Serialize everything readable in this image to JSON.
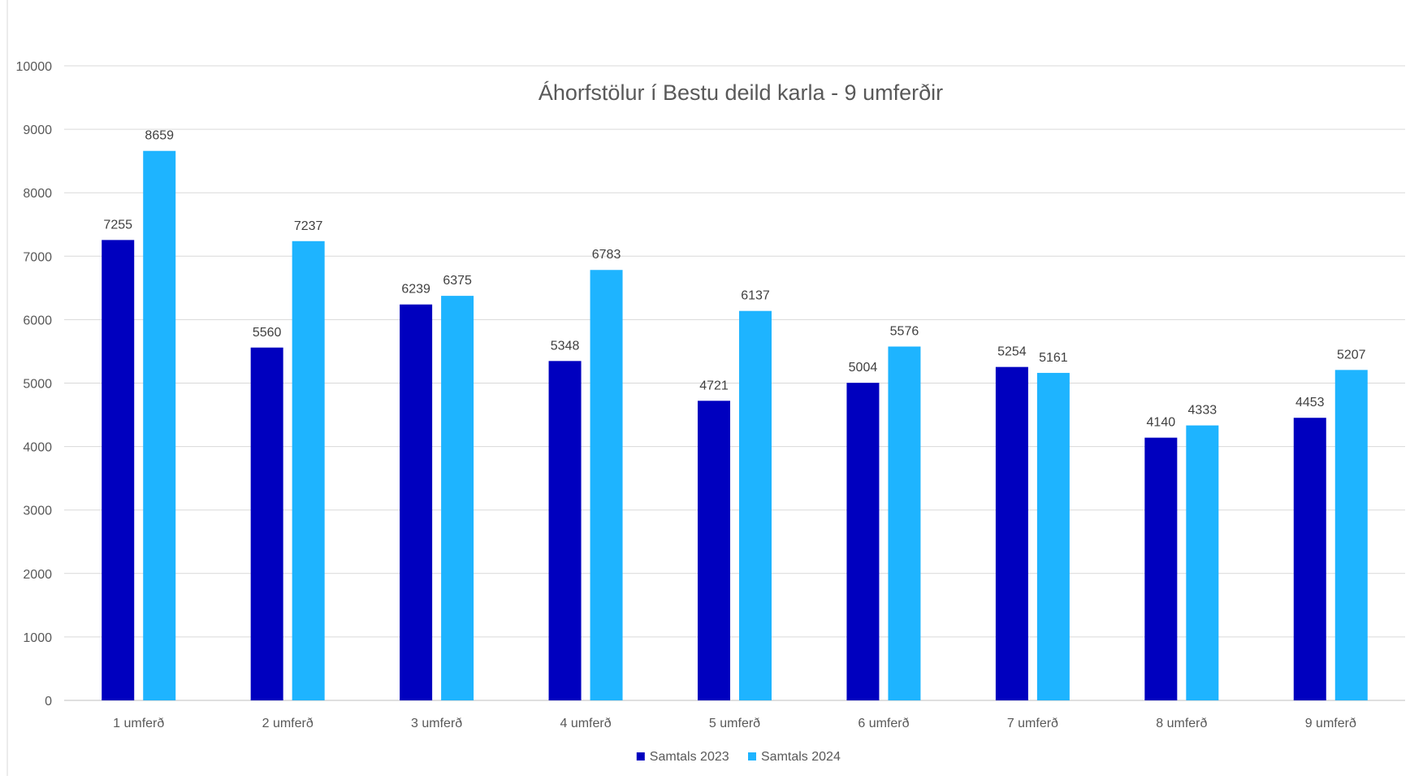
{
  "chart_data": {
    "type": "bar",
    "title": "Áhorfstölur í Bestu deild karla - 9 umferðir",
    "categories": [
      "1 umferð",
      "2 umferð",
      "3 umferð",
      "4 umferð",
      "5 umferð",
      "6 umferð",
      "7 umferð",
      "8 umferð",
      "9 umferð"
    ],
    "series": [
      {
        "name": "Samtals 2023",
        "color": "#0000BF",
        "values": [
          7255,
          5560,
          6239,
          5348,
          4721,
          5004,
          5254,
          4140,
          4453
        ]
      },
      {
        "name": "Samtals 2024",
        "color": "#1EB4FF",
        "values": [
          8659,
          7237,
          6375,
          6783,
          6137,
          5576,
          5161,
          4333,
          5207
        ]
      }
    ],
    "ylim": [
      0,
      10000
    ],
    "yticks": [
      0,
      1000,
      2000,
      3000,
      4000,
      5000,
      6000,
      7000,
      8000,
      9000,
      10000
    ],
    "grid": true,
    "legend_position": "bottom",
    "data_labels": true
  }
}
